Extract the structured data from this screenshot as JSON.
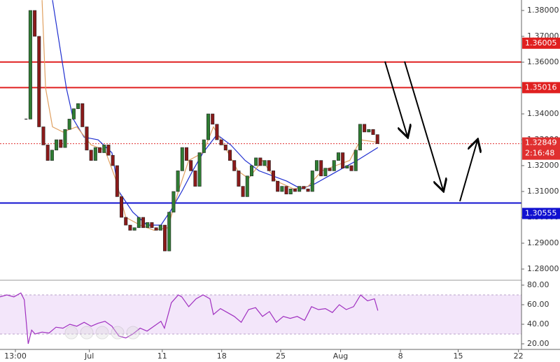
{
  "chart_data": {
    "type": "candlestick",
    "xlim": [
      -6,
      114.2
    ],
    "xticks": [
      {
        "value": -2.45,
        "label": "13:00"
      },
      {
        "value": 14.6,
        "label": "Jul"
      },
      {
        "value": 31.4,
        "label": "11"
      },
      {
        "value": 45.1,
        "label": "18"
      },
      {
        "value": 58.7,
        "label": "25"
      },
      {
        "value": 72.5,
        "label": "Aug"
      },
      {
        "value": 86.3,
        "label": "8"
      },
      {
        "value": 99.6,
        "label": "15"
      },
      {
        "value": 113.5,
        "label": "22"
      }
    ],
    "ylim": [
      1.27595,
      1.38405
    ],
    "yticks": [
      {
        "value": 1.38,
        "label": "1.38000"
      },
      {
        "value": 1.37,
        "label": "1.37000"
      },
      {
        "value": 1.36,
        "label": "1.36000"
      },
      {
        "value": 1.35,
        "label": "1.35000"
      },
      {
        "value": 1.34,
        "label": "1.34000"
      },
      {
        "value": 1.33,
        "label": "1.33000"
      },
      {
        "value": 1.32,
        "label": "1.32000"
      },
      {
        "value": 1.31,
        "label": "1.31000"
      },
      {
        "value": 1.3,
        "label": "1.30000"
      },
      {
        "value": 1.29,
        "label": "1.29000"
      },
      {
        "value": 1.28,
        "label": "1.28000"
      }
    ],
    "close": [
      1.338,
      1.38,
      1.37,
      1.335,
      1.328,
      1.322,
      1.326,
      1.33,
      1.327,
      1.334,
      1.338,
      1.342,
      1.344,
      1.335,
      1.326,
      1.322,
      1.327,
      1.325,
      1.328,
      1.324,
      1.32,
      1.308,
      1.3,
      1.297,
      1.295,
      1.296,
      1.3,
      1.296,
      1.298,
      1.296,
      1.295,
      1.297,
      1.287,
      1.302,
      1.31,
      1.318,
      1.327,
      1.322,
      1.318,
      1.312,
      1.325,
      1.33,
      1.34,
      1.336,
      1.33,
      1.328,
      1.326,
      1.322,
      1.318,
      1.312,
      1.308,
      1.316,
      1.32,
      1.323,
      1.32,
      1.322,
      1.318,
      1.314,
      1.31,
      1.312,
      1.309,
      1.311,
      1.31,
      1.312,
      1.311,
      1.31,
      1.318,
      1.322,
      1.316,
      1.319,
      1.318,
      1.322,
      1.325,
      1.319,
      1.32,
      1.318,
      1.326,
      1.336,
      1.333,
      1.334,
      1.332,
      1.3285
    ],
    "up_color": "#2e7d32",
    "down_color": "#8b1a1a",
    "moving_averages": [
      {
        "color": "#1f2fd0",
        "x": [
          6.1,
          9.3,
          10.9,
          13.4,
          16.6,
          19.8,
          21.4,
          24.6,
          27.9,
          31.1,
          33.5,
          35.9,
          38.4,
          40.8,
          44,
          47.2,
          50.5,
          53.7,
          56.9,
          60.1,
          63.4,
          66.6,
          69.8,
          73,
          76.3,
          81.1
        ],
        "values": [
          1.384,
          1.35,
          1.338,
          1.331,
          1.33,
          1.325,
          1.31,
          1.302,
          1.297,
          1.297,
          1.303,
          1.31,
          1.318,
          1.325,
          1.332,
          1.328,
          1.322,
          1.318,
          1.316,
          1.314,
          1.311,
          1.313,
          1.316,
          1.319,
          1.322,
          1.327
        ]
      },
      {
        "color": "#e0a060",
        "x": [
          3.7,
          4.5,
          6.1,
          8.5,
          11.7,
          15,
          18.2,
          20.6,
          23,
          26.3,
          29.5,
          32.7,
          35.1,
          37.5,
          40.8,
          43.2,
          45.6,
          48.8,
          51.3,
          54.5,
          57.7,
          61.7,
          65,
          68.2,
          71.4,
          74.6,
          77.1,
          81.1
        ],
        "values": [
          1.384,
          1.35,
          1.335,
          1.333,
          1.335,
          1.328,
          1.326,
          1.315,
          1.3,
          1.297,
          1.295,
          1.296,
          1.31,
          1.322,
          1.325,
          1.335,
          1.328,
          1.318,
          1.315,
          1.322,
          1.314,
          1.311,
          1.312,
          1.318,
          1.32,
          1.322,
          1.33,
          1.329
        ]
      }
    ],
    "levels": [
      {
        "value": 1.36005,
        "color": "#e02020"
      },
      {
        "value": 1.35016,
        "color": "#e02020"
      },
      {
        "value": 1.30555,
        "color": "#1010d0"
      }
    ],
    "current_price": {
      "value": 1.32849,
      "countdown": "2:16:48",
      "color": "#e03030"
    },
    "rsi": {
      "ylim": [
        14.29,
        83.57
      ],
      "yticks": [
        {
          "value": 80,
          "label": "80.00"
        },
        {
          "value": 60,
          "label": "60.00"
        },
        {
          "value": 40,
          "label": "40.00"
        },
        {
          "value": 20,
          "label": "20.00"
        }
      ],
      "bands": [
        30,
        70
      ],
      "color": "#a030c0",
      "x": [
        -6,
        -4.4,
        -2.8,
        -1.2,
        -0.4,
        0.5,
        1.3,
        2.1,
        3.7,
        5.3,
        6.9,
        8.5,
        10.1,
        11.7,
        13.4,
        15,
        16.6,
        18.2,
        19.8,
        21.4,
        23,
        24.6,
        26.3,
        27.9,
        29.5,
        31.1,
        31.9,
        33.5,
        35.1,
        35.9,
        37.5,
        39.2,
        40.8,
        42.4,
        43.2,
        44.8,
        46.4,
        48,
        49.6,
        51.3,
        52.9,
        54.5,
        56.1,
        57.7,
        59.3,
        60.9,
        62.5,
        64.2,
        65.8,
        67.4,
        69,
        70.6,
        72.2,
        73.8,
        75.5,
        77.1,
        78.7,
        80.3,
        81.1
      ],
      "values": [
        68,
        70,
        68,
        72,
        65,
        20,
        34,
        30,
        32,
        31,
        37,
        36,
        40,
        38,
        42,
        38,
        41,
        43,
        38,
        28,
        26,
        30,
        36,
        33,
        38,
        43,
        36,
        62,
        70,
        68,
        58,
        66,
        70,
        66,
        50,
        56,
        52,
        48,
        42,
        55,
        57,
        48,
        53,
        42,
        48,
        46,
        48,
        44,
        58,
        55,
        56,
        52,
        60,
        55,
        58,
        70,
        64,
        66,
        54
      ]
    }
  }
}
